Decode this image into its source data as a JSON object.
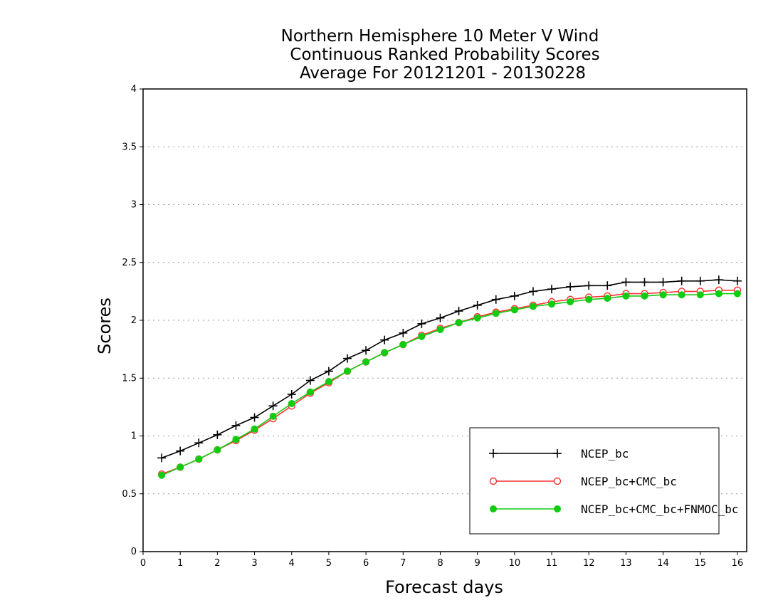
{
  "chart_data": {
    "type": "line",
    "title": [
      "Northern Hemisphere 10 Meter V Wind",
      "Continuous Ranked Probability Scores",
      "Average For 20121201 - 20130228"
    ],
    "xlabel": "Forecast days",
    "ylabel": "Scores",
    "xlim": [
      0,
      16.25
    ],
    "ylim": [
      0,
      4
    ],
    "xticks": [
      "0",
      "1",
      "2",
      "3",
      "4",
      "5",
      "6",
      "7",
      "8",
      "9",
      "10",
      "11",
      "12",
      "13",
      "14",
      "15",
      "16"
    ],
    "yticks": [
      "0",
      "0.5",
      "1",
      "1.5",
      "2",
      "2.5",
      "3",
      "3.5",
      "4"
    ],
    "grid": "horizontal dotted",
    "legend_position": "bottom-right",
    "x": [
      0.5,
      1,
      1.5,
      2,
      2.5,
      3,
      3.5,
      4,
      4.5,
      5,
      5.5,
      6,
      6.5,
      7,
      7.5,
      8,
      8.5,
      9,
      9.5,
      10,
      10.5,
      11,
      11.5,
      12,
      12.5,
      13,
      13.5,
      14,
      14.5,
      15,
      15.5,
      16
    ],
    "series": [
      {
        "name": "NCEP_bc",
        "color": "#000000",
        "marker": "plus",
        "values": [
          0.81,
          0.87,
          0.94,
          1.01,
          1.09,
          1.16,
          1.26,
          1.36,
          1.48,
          1.56,
          1.67,
          1.74,
          1.83,
          1.89,
          1.97,
          2.02,
          2.08,
          2.13,
          2.18,
          2.21,
          2.25,
          2.27,
          2.29,
          2.3,
          2.3,
          2.33,
          2.33,
          2.33,
          2.34,
          2.34,
          2.35,
          2.34
        ]
      },
      {
        "name": "NCEP_bc+CMC_bc",
        "color": "#ff3030",
        "marker": "open-circle",
        "values": [
          0.67,
          0.73,
          0.8,
          0.88,
          0.96,
          1.05,
          1.15,
          1.26,
          1.37,
          1.46,
          1.56,
          1.64,
          1.72,
          1.79,
          1.87,
          1.93,
          1.98,
          2.03,
          2.07,
          2.1,
          2.13,
          2.16,
          2.18,
          2.2,
          2.21,
          2.23,
          2.23,
          2.24,
          2.25,
          2.25,
          2.26,
          2.26
        ]
      },
      {
        "name": "NCEP_bc+CMC_bc+FNMOC_bc",
        "color": "#11cc11",
        "marker": "filled-circle",
        "values": [
          0.66,
          0.73,
          0.8,
          0.88,
          0.97,
          1.06,
          1.17,
          1.28,
          1.38,
          1.47,
          1.56,
          1.64,
          1.72,
          1.79,
          1.86,
          1.92,
          1.98,
          2.02,
          2.06,
          2.09,
          2.12,
          2.14,
          2.16,
          2.18,
          2.19,
          2.21,
          2.21,
          2.22,
          2.22,
          2.22,
          2.23,
          2.23
        ]
      }
    ]
  }
}
